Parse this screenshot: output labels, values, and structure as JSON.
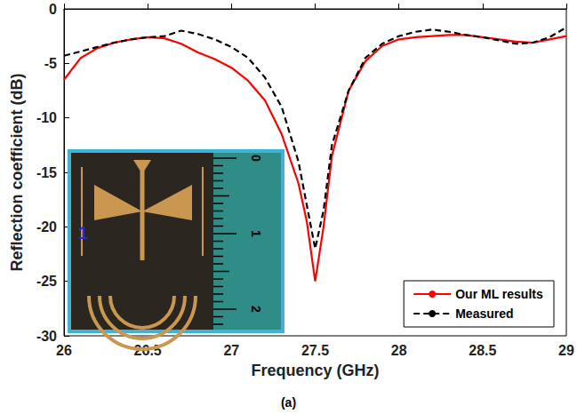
{
  "chart_data": {
    "type": "line",
    "x_label": "Frequency (GHz)",
    "y_label": "Reflection coefficient (dB)",
    "caption": "(a)",
    "x": [
      26,
      26.1,
      26.2,
      26.3,
      26.4,
      26.5,
      26.6,
      26.7,
      26.8,
      26.9,
      27,
      27.1,
      27.2,
      27.3,
      27.4,
      27.45,
      27.5,
      27.55,
      27.6,
      27.7,
      27.8,
      27.9,
      28,
      28.1,
      28.2,
      28.3,
      28.4,
      28.5,
      28.6,
      28.7,
      28.8,
      28.9,
      29
    ],
    "series": [
      {
        "name": "Our ML results",
        "color": "#ff0000",
        "line_style": "solid",
        "values": [
          -6.5,
          -4.5,
          -3.6,
          -3.1,
          -2.8,
          -2.6,
          -2.7,
          -3.2,
          -4.0,
          -4.6,
          -5.4,
          -6.6,
          -8.4,
          -11.5,
          -16,
          -19.5,
          -25,
          -20,
          -13.5,
          -7.5,
          -4.8,
          -3.4,
          -2.8,
          -2.6,
          -2.5,
          -2.4,
          -2.4,
          -2.6,
          -2.8,
          -3.0,
          -3.1,
          -2.8,
          -2.5
        ]
      },
      {
        "name": "Measured",
        "color": "#000000",
        "line_style": "dashed",
        "values": [
          -4.3,
          -3.9,
          -3.5,
          -3.1,
          -2.8,
          -2.6,
          -2.5,
          -2.0,
          -2.3,
          -2.8,
          -3.5,
          -4.5,
          -6.3,
          -9,
          -14,
          -18,
          -22,
          -18.5,
          -12.5,
          -7.5,
          -4.5,
          -3.2,
          -2.5,
          -2.1,
          -1.9,
          -2.1,
          -2.4,
          -2.6,
          -2.9,
          -3.2,
          -3.1,
          -2.6,
          -1.7
        ]
      }
    ],
    "xlim": [
      26,
      29
    ],
    "xticks": [
      26,
      26.5,
      27,
      27.5,
      28,
      28.5,
      29
    ],
    "ylim": [
      -30,
      0
    ],
    "yticks": [
      -30,
      -25,
      -20,
      -15,
      -10,
      -5,
      0
    ],
    "grid": false,
    "legend": "lower right",
    "inset": {
      "tag": "1",
      "ruler_labels": [
        "0",
        "1",
        "2"
      ]
    }
  }
}
